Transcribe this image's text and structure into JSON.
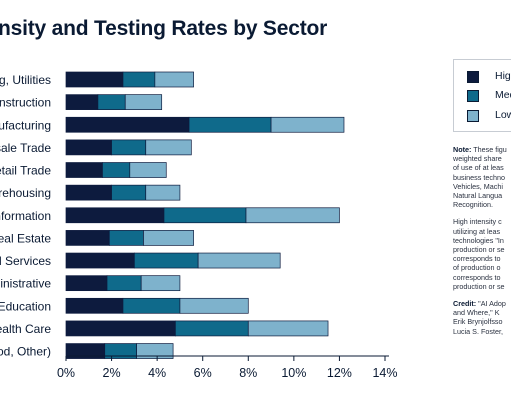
{
  "title": "nsity and Testing Rates by Sector",
  "chart_data": {
    "type": "bar",
    "orientation": "horizontal",
    "stacked": true,
    "categories": [
      "g, Utilities",
      "onstruction",
      "ufacturing",
      "sale Trade",
      "etail Trade",
      "arehousing",
      "nformation",
      "Real Estate",
      "al Services",
      "ninistrative",
      "Education",
      "ealth Care",
      "od, Other)"
    ],
    "series": [
      {
        "name": "High I",
        "color": "#0d1b3e",
        "values": [
          2.5,
          1.4,
          5.4,
          2.0,
          1.6,
          2.0,
          4.3,
          1.9,
          3.0,
          1.8,
          2.5,
          4.8,
          1.7
        ]
      },
      {
        "name": "Mediu",
        "color": "#0f6a8b",
        "values": [
          1.4,
          1.2,
          3.6,
          1.5,
          1.2,
          1.5,
          3.6,
          1.5,
          2.8,
          1.5,
          2.5,
          3.2,
          1.4
        ]
      },
      {
        "name": "Low I",
        "color": "#7eb2cc",
        "values": [
          1.7,
          1.6,
          3.2,
          2.0,
          1.6,
          1.5,
          4.1,
          2.2,
          3.6,
          1.7,
          3.0,
          3.5,
          1.6
        ]
      }
    ],
    "xlim": [
      0,
      14
    ],
    "xticks": [
      "0%",
      "2%",
      "4%",
      "6%",
      "8%",
      "10%",
      "12%",
      "14%"
    ],
    "legend_position": "right",
    "grid": false
  },
  "notes": {
    "note_label": "Note:",
    "note_lines": [
      " These figu",
      "weighted share",
      "of use of at leas",
      "business techno",
      "Vehicles, Machi",
      "Natural Langua",
      "Recognition."
    ],
    "def_lines": [
      "High intensity c",
      "utilizing at leas",
      "technologies \"In",
      "production or se",
      "corresponds to",
      "of production o",
      "corresponds to",
      "production or se"
    ],
    "credit_label": "Credit:",
    "credit_lines": [
      " \"AI Adop",
      "and Where,\" K",
      "Erik Brynjolfsso",
      "Lucia S. Foster,"
    ]
  }
}
